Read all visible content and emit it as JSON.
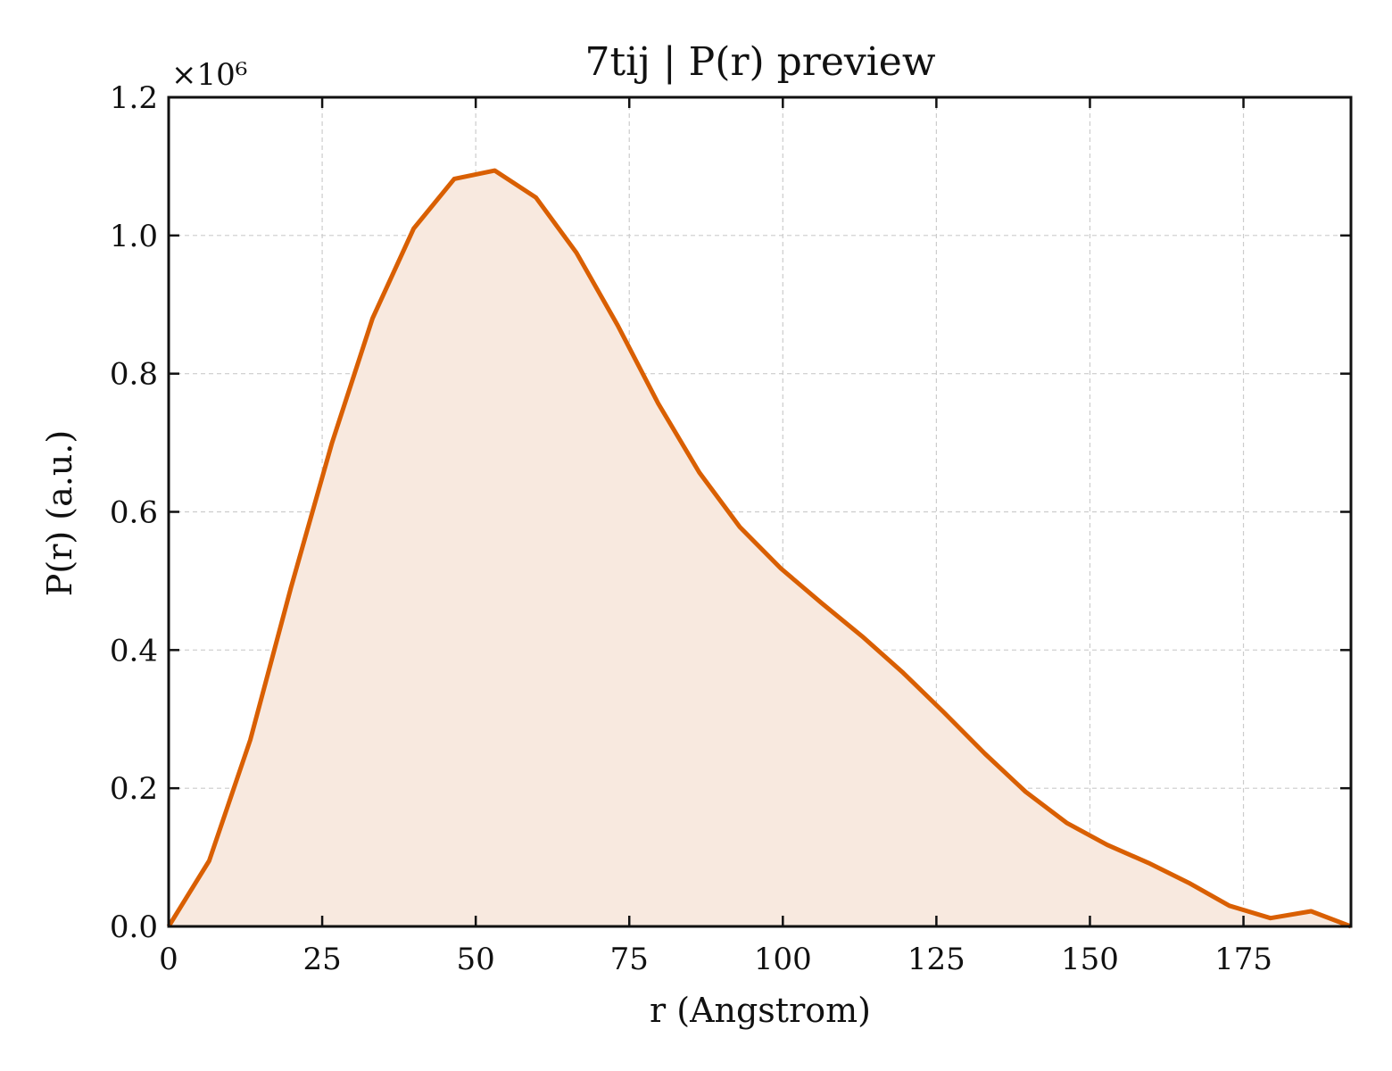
{
  "chart_data": {
    "type": "area",
    "title": "7tij | P(r) preview",
    "xlabel": "r (Angstrom)",
    "ylabel": "P(r) (a.u.)",
    "y_offset_label": "×10⁶",
    "y_multiplier": 1000000,
    "xlim": [
      0,
      192.5
    ],
    "ylim": [
      0,
      1.2
    ],
    "x_ticks": [
      0,
      25,
      50,
      75,
      100,
      125,
      150,
      175
    ],
    "x_tick_labels": [
      "0",
      "25",
      "50",
      "75",
      "100",
      "125",
      "150",
      "175"
    ],
    "y_ticks": [
      0.0,
      0.2,
      0.4,
      0.6,
      0.8,
      1.0,
      1.2
    ],
    "y_tick_labels": [
      "0.0",
      "0.2",
      "0.4",
      "0.6",
      "0.8",
      "1.0",
      "1.2"
    ],
    "grid": true,
    "line_color": "#d95f02",
    "fill_color": "#f8e9df",
    "series": [
      {
        "x": [
          0,
          6.6,
          13.3,
          19.9,
          26.6,
          33.2,
          39.9,
          46.5,
          53.1,
          59.8,
          66.4,
          73.1,
          79.7,
          86.4,
          93.0,
          99.7,
          106.3,
          112.9,
          119.6,
          126.2,
          132.9,
          139.5,
          146.2,
          152.8,
          159.5,
          166.1,
          172.7,
          179.4,
          186.0,
          192.5
        ],
        "values": [
          0.0,
          0.095,
          0.27,
          0.49,
          0.7,
          0.88,
          1.01,
          1.082,
          1.094,
          1.055,
          0.975,
          0.87,
          0.757,
          0.657,
          0.578,
          0.518,
          0.468,
          0.42,
          0.367,
          0.31,
          0.25,
          0.195,
          0.15,
          0.118,
          0.092,
          0.063,
          0.03,
          0.012,
          0.022,
          0.0
        ]
      }
    ]
  }
}
